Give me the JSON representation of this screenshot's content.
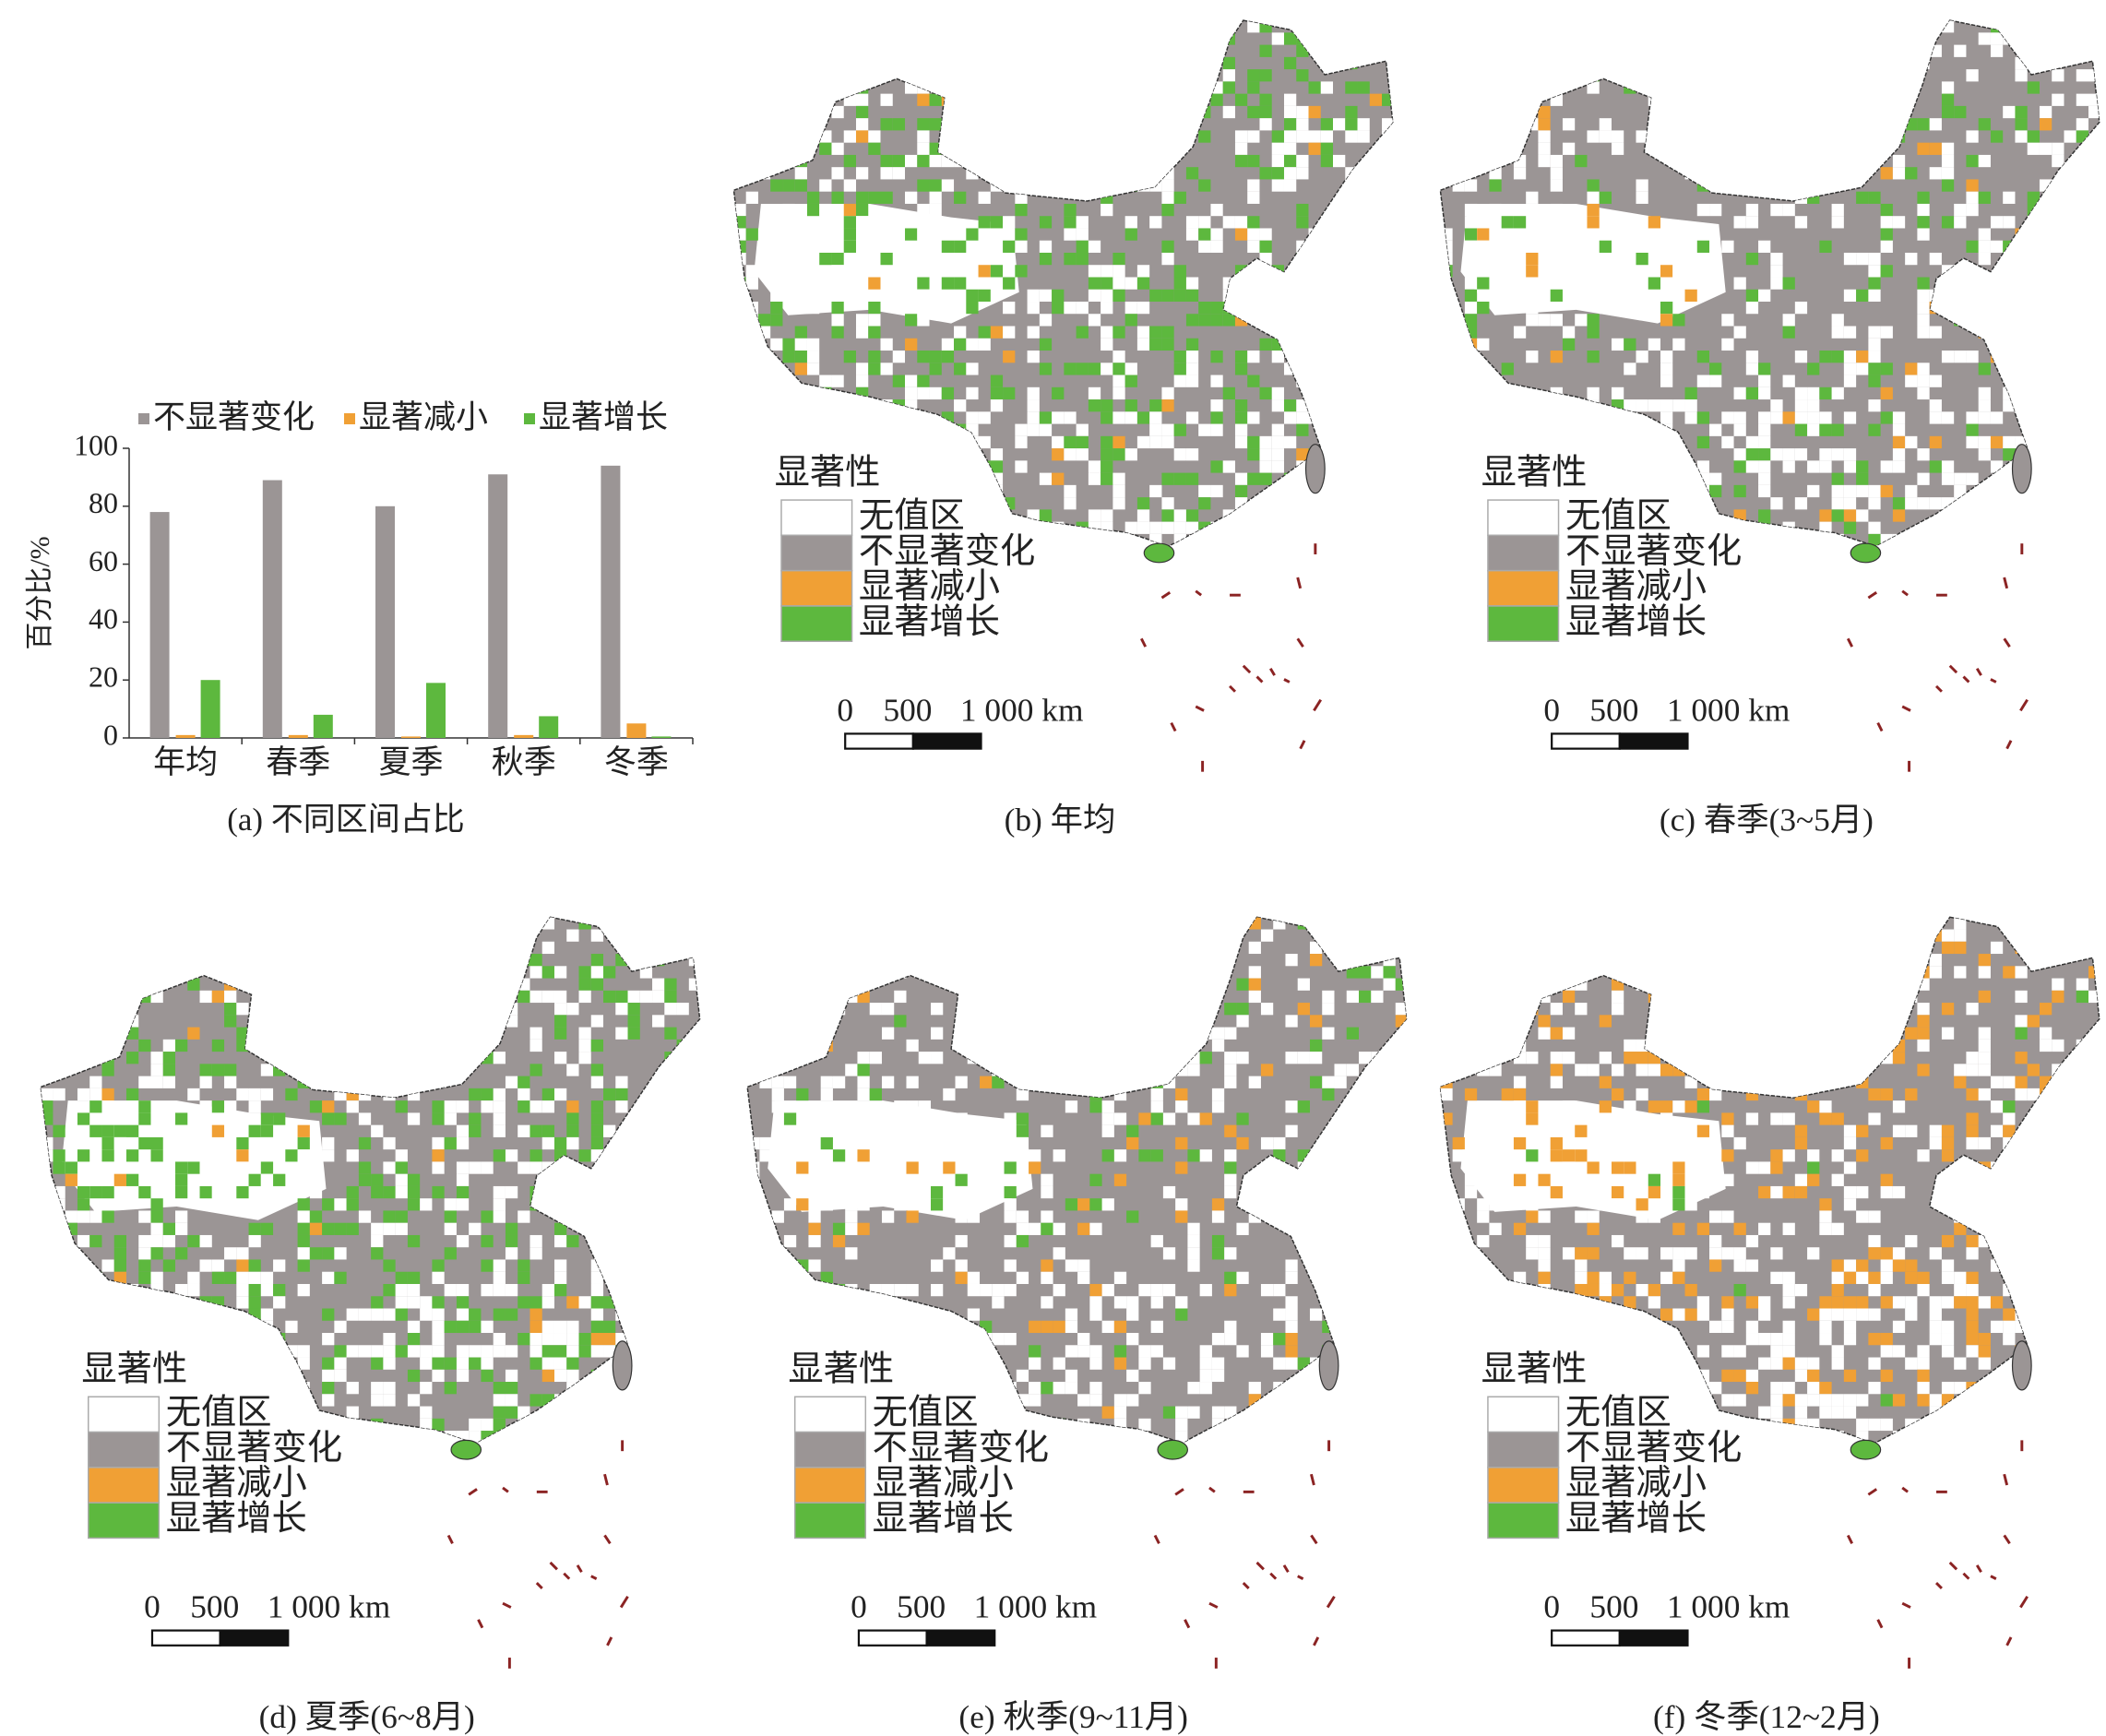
{
  "chart_data": {
    "type": "bar",
    "caption": "(a) 不同区间占比",
    "y_label": "百分比/%",
    "categories": [
      "年均",
      "春季",
      "夏季",
      "秋季",
      "冬季"
    ],
    "series": [
      {
        "name": "不显著变化",
        "color": "#9b9595",
        "values": [
          78,
          89,
          80,
          91,
          94
        ]
      },
      {
        "name": "显著减小",
        "color": "#f0a035",
        "values": [
          1,
          1,
          0.5,
          1,
          5
        ]
      },
      {
        "name": "显著增长",
        "color": "#5db83e",
        "values": [
          20,
          8,
          19,
          7.5,
          0.5
        ]
      }
    ],
    "ylim": [
      0,
      100
    ],
    "yticks": [
      0,
      20,
      40,
      60,
      80,
      100
    ],
    "legend": "top"
  },
  "maps": [
    {
      "caption": "(b) 年均",
      "legend_title": "显著性",
      "legend_items": [
        {
          "label": "无值区",
          "color": "#ffffff"
        },
        {
          "label": "不显著变化",
          "color": "#9b9595"
        },
        {
          "label": "显著减小",
          "color": "#f0a035"
        },
        {
          "label": "显著增长",
          "color": "#5db83e"
        }
      ],
      "scale_labels": [
        "0",
        "500",
        "1 000 km"
      ]
    },
    {
      "caption": "(c) 春季(3~5月)",
      "legend_title": "显著性",
      "legend_items": [
        {
          "label": "无值区",
          "color": "#ffffff"
        },
        {
          "label": "不显著变化",
          "color": "#9b9595"
        },
        {
          "label": "显著减小",
          "color": "#f0a035"
        },
        {
          "label": "显著增长",
          "color": "#5db83e"
        }
      ],
      "scale_labels": [
        "0",
        "500",
        "1 000 km"
      ]
    },
    {
      "caption": "(d) 夏季(6~8月)",
      "legend_title": "显著性",
      "legend_items": [
        {
          "label": "无值区",
          "color": "#ffffff"
        },
        {
          "label": "不显著变化",
          "color": "#9b9595"
        },
        {
          "label": "显著减小",
          "color": "#f0a035"
        },
        {
          "label": "显著增长",
          "color": "#5db83e"
        }
      ],
      "scale_labels": [
        "0",
        "500",
        "1 000 km"
      ]
    },
    {
      "caption": "(e) 秋季(9~11月)",
      "legend_title": "显著性",
      "legend_items": [
        {
          "label": "无值区",
          "color": "#ffffff"
        },
        {
          "label": "不显著变化",
          "color": "#9b9595"
        },
        {
          "label": "显著减小",
          "color": "#f0a035"
        },
        {
          "label": "显著增长",
          "color": "#5db83e"
        }
      ],
      "scale_labels": [
        "0",
        "500",
        "1 000 km"
      ]
    },
    {
      "caption": "(f) 冬季(12~2月)",
      "legend_title": "显著性",
      "legend_items": [
        {
          "label": "无值区",
          "color": "#ffffff"
        },
        {
          "label": "不显著变化",
          "color": "#9b9595"
        },
        {
          "label": "显著减小",
          "color": "#f0a035"
        },
        {
          "label": "显著增长",
          "color": "#5db83e"
        }
      ],
      "scale_labels": [
        "0",
        "500",
        "1 000 km"
      ]
    }
  ]
}
